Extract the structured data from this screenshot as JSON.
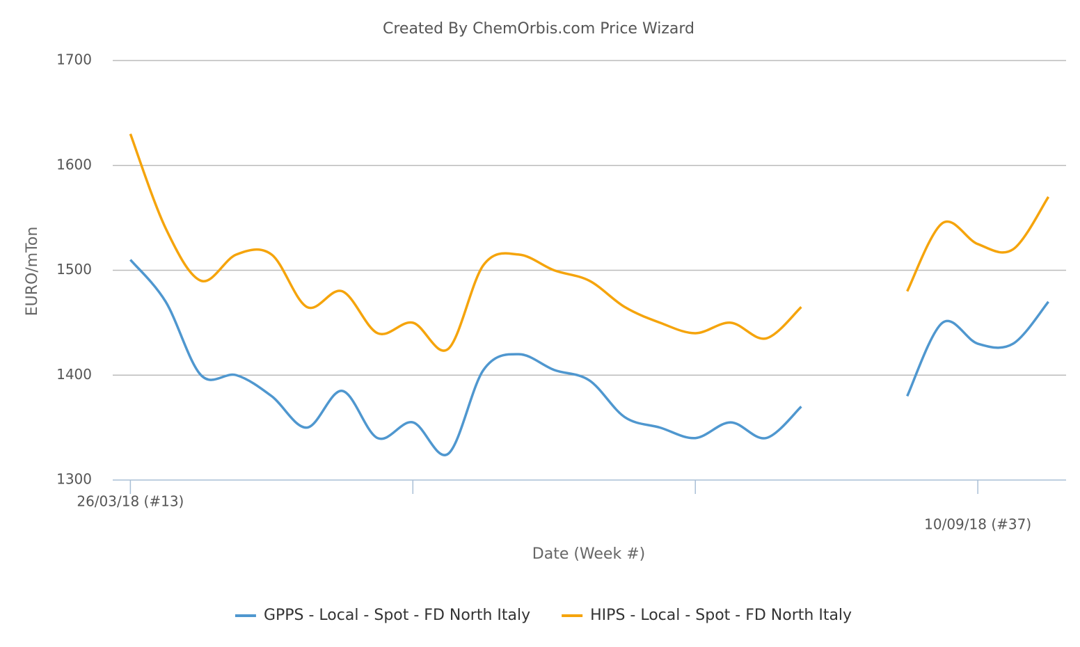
{
  "chart_data": {
    "type": "line",
    "title": "Created By ChemOrbis.com Price Wizard",
    "x_label": "Date (Week #)",
    "y_label": "EURO/mTon",
    "categories": [
      "26/03/18 (#13)",
      null,
      null,
      null,
      null,
      null,
      null,
      null,
      null,
      null,
      null,
      null,
      null,
      null,
      null,
      null,
      null,
      null,
      null,
      null,
      null,
      null,
      null,
      null,
      "10/09/18 (#37)",
      null,
      null
    ],
    "series": [
      {
        "name": "GPPS - Local - Spot - FD North Italy",
        "color": "#4f97cf",
        "values": [
          1510,
          1470,
          1400,
          1400,
          1380,
          1350,
          1385,
          1340,
          1355,
          1325,
          1405,
          1420,
          1405,
          1395,
          1360,
          1350,
          1340,
          1355,
          1340,
          1370,
          null,
          null,
          1380,
          1450,
          1430,
          1430,
          1470
        ]
      },
      {
        "name": "HIPS - Local - Spot - FD North Italy",
        "color": "#f5a40c",
        "values": [
          1630,
          1540,
          1490,
          1515,
          1515,
          1465,
          1480,
          1440,
          1450,
          1425,
          1505,
          1515,
          1500,
          1490,
          1465,
          1450,
          1440,
          1450,
          1435,
          1465,
          null,
          null,
          1480,
          1545,
          1525,
          1520,
          1570
        ]
      }
    ],
    "ylim": [
      1300,
      1700
    ],
    "yticks": [
      1300,
      1400,
      1500,
      1600,
      1700
    ],
    "grid": true,
    "legend": "bottom"
  }
}
